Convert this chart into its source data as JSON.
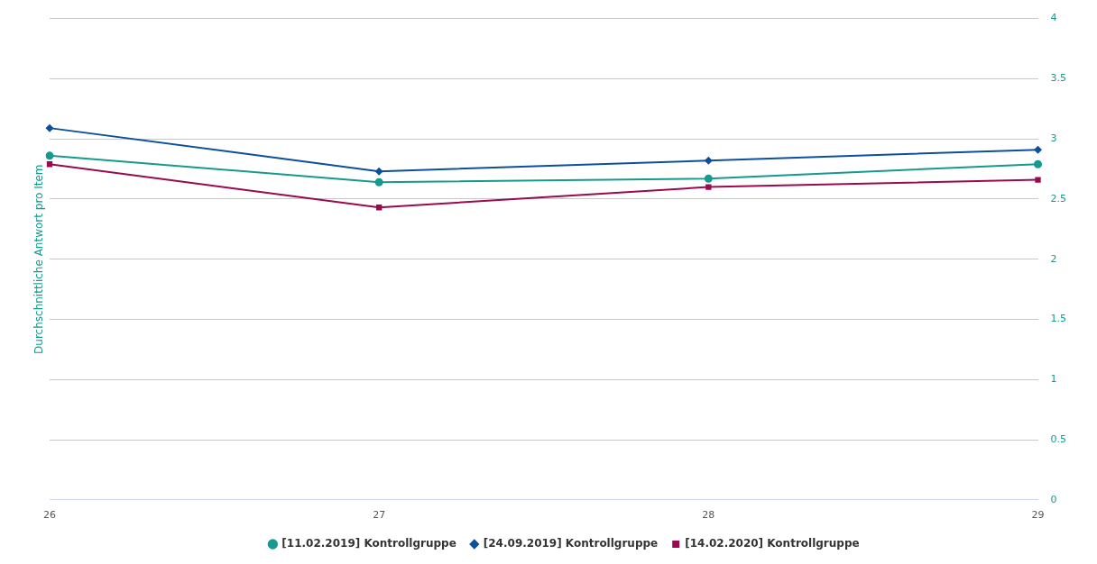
{
  "chart_data": {
    "type": "line",
    "ylabel": "Durchschnittliche Antwort pro Item",
    "categories": [
      "26",
      "27",
      "28",
      "29"
    ],
    "series": [
      {
        "name": "[11.02.2019] Kontrollgruppe",
        "color": "#16998f",
        "marker": "circle",
        "values": [
          2.86,
          2.64,
          2.67,
          2.79
        ]
      },
      {
        "name": "[24.09.2019] Kontrollgruppe",
        "color": "#0d4f9e",
        "marker": "diamond",
        "values": [
          3.09,
          2.73,
          2.82,
          2.91
        ]
      },
      {
        "name": "[14.02.2020] Kontrollgruppe",
        "color": "#9b0a4e",
        "marker": "square",
        "values": [
          2.79,
          2.43,
          2.6,
          2.66
        ]
      }
    ],
    "ylim": [
      0,
      4
    ],
    "yticks": [
      0,
      0.5,
      1,
      1.5,
      2,
      2.5,
      3,
      3.5,
      4
    ],
    "grid": "y",
    "legend": "bottom",
    "line_style": "solid"
  }
}
